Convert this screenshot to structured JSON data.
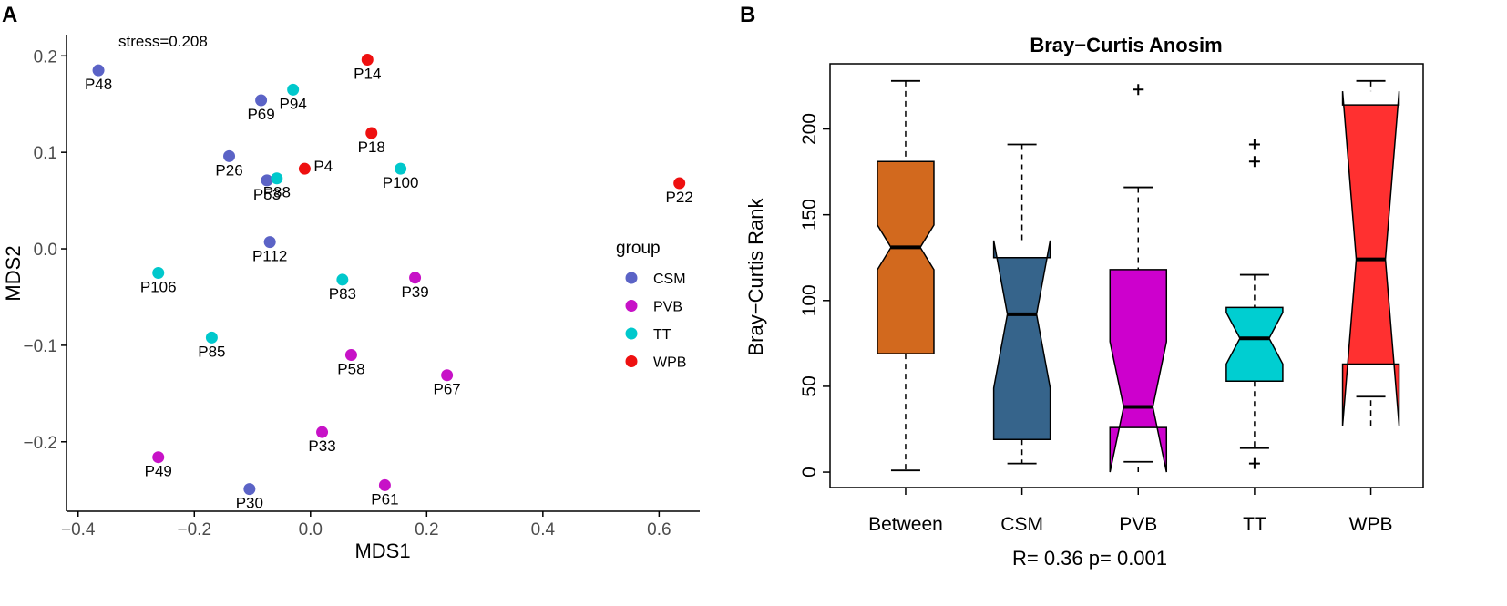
{
  "panel_labels": [
    "A",
    "B"
  ],
  "chart_data": [
    {
      "type": "scatter",
      "panel": "A",
      "title": "",
      "xlabel": "MDS1",
      "ylabel": "MDS2",
      "xlim": [
        -0.42,
        0.67
      ],
      "ylim": [
        -0.272,
        0.222
      ],
      "xticks": [
        -0.4,
        -0.2,
        0.0,
        0.2,
        0.4,
        0.6
      ],
      "xtick_labels": [
        "-0.4",
        "-0.2",
        "0.0",
        "0.2",
        "0.4",
        "0.6"
      ],
      "yticks": [
        0.2,
        0.1,
        0.0,
        -0.1,
        -0.2
      ],
      "ytick_labels": [
        "0.2",
        "0.1",
        "0.0",
        "-0.1",
        "-0.2"
      ],
      "annotation": "stress=0.208",
      "legend": {
        "title": "group",
        "position": "right",
        "entries": [
          {
            "name": "CSM",
            "color": "#5b63c6"
          },
          {
            "name": "PVB",
            "color": "#c712c7"
          },
          {
            "name": "TT",
            "color": "#00c8cc"
          },
          {
            "name": "WPB",
            "color": "#ee1010"
          }
        ]
      },
      "points": [
        {
          "label": "P48",
          "group": "CSM",
          "x": -0.365,
          "y": 0.185
        },
        {
          "label": "P69",
          "group": "CSM",
          "x": -0.085,
          "y": 0.154
        },
        {
          "label": "P26",
          "group": "CSM",
          "x": -0.14,
          "y": 0.096
        },
        {
          "label": "P53",
          "group": "CSM",
          "x": -0.075,
          "y": 0.071
        },
        {
          "label": "P112",
          "group": "CSM",
          "x": -0.07,
          "y": 0.007
        },
        {
          "label": "P30",
          "group": "CSM",
          "x": -0.105,
          "y": -0.249
        },
        {
          "label": "P49",
          "group": "PVB",
          "x": -0.262,
          "y": -0.216
        },
        {
          "label": "P39",
          "group": "PVB",
          "x": 0.18,
          "y": -0.03
        },
        {
          "label": "P58",
          "group": "PVB",
          "x": 0.07,
          "y": -0.11
        },
        {
          "label": "P67",
          "group": "PVB",
          "x": 0.235,
          "y": -0.131
        },
        {
          "label": "P33",
          "group": "PVB",
          "x": 0.02,
          "y": -0.19
        },
        {
          "label": "P61",
          "group": "PVB",
          "x": 0.128,
          "y": -0.245
        },
        {
          "label": "P94",
          "group": "TT",
          "x": -0.03,
          "y": 0.165
        },
        {
          "label": "P88",
          "group": "TT",
          "x": -0.058,
          "y": 0.073
        },
        {
          "label": "P100",
          "group": "TT",
          "x": 0.155,
          "y": 0.083
        },
        {
          "label": "P106",
          "group": "TT",
          "x": -0.262,
          "y": -0.025
        },
        {
          "label": "P83",
          "group": "TT",
          "x": 0.055,
          "y": -0.032
        },
        {
          "label": "P85",
          "group": "TT",
          "x": -0.17,
          "y": -0.092
        },
        {
          "label": "P14",
          "group": "WPB",
          "x": 0.098,
          "y": 0.196
        },
        {
          "label": "P18",
          "group": "WPB",
          "x": 0.105,
          "y": 0.12
        },
        {
          "label": "P4",
          "group": "WPB",
          "x": -0.01,
          "y": 0.083
        },
        {
          "label": "P22",
          "group": "WPB",
          "x": 0.635,
          "y": 0.068
        }
      ]
    },
    {
      "type": "boxplot",
      "panel": "B",
      "title": "Bray−Curtis Anosim",
      "xlabel": "R= 0.36 p= 0.001",
      "ylabel": "Bray−Curtis Rank",
      "ylim": [
        -9,
        238
      ],
      "yticks": [
        0,
        50,
        100,
        150,
        200
      ],
      "ytick_labels": [
        "0",
        "50",
        "100",
        "150",
        "200"
      ],
      "notched": true,
      "categories": [
        "Between",
        "CSM",
        "PVB",
        "TT",
        "WPB"
      ],
      "boxes": [
        {
          "name": "Between",
          "color": "#d2691e",
          "whisker_low": 1,
          "q1": 69,
          "median": 131,
          "q3": 181,
          "whisker_high": 228,
          "notch_low": 118,
          "notch_high": 144,
          "outliers": []
        },
        {
          "name": "CSM",
          "color": "#36648b",
          "whisker_low": 5,
          "q1": 19,
          "median": 92,
          "q3": 125,
          "whisker_high": 191,
          "notch_low": 49,
          "notch_high": 135,
          "outliers": []
        },
        {
          "name": "PVB",
          "color": "#cd00cd",
          "whisker_low": 6,
          "q1": 26,
          "median": 38,
          "q3": 118,
          "whisker_high": 166,
          "notch_low": 0,
          "notch_high": 76,
          "outliers": [
            223
          ]
        },
        {
          "name": "TT",
          "color": "#00ced1",
          "whisker_low": 14,
          "q1": 53,
          "median": 78,
          "q3": 96,
          "whisker_high": 115,
          "notch_low": 63,
          "notch_high": 93,
          "outliers": [
            191,
            181,
            5
          ]
        },
        {
          "name": "WPB",
          "color": "#ff3030",
          "whisker_low": 44,
          "q1": 63,
          "median": 124,
          "q3": 214,
          "whisker_high": 228,
          "notch_low": 27,
          "notch_high": 222,
          "outliers": []
        }
      ]
    }
  ]
}
